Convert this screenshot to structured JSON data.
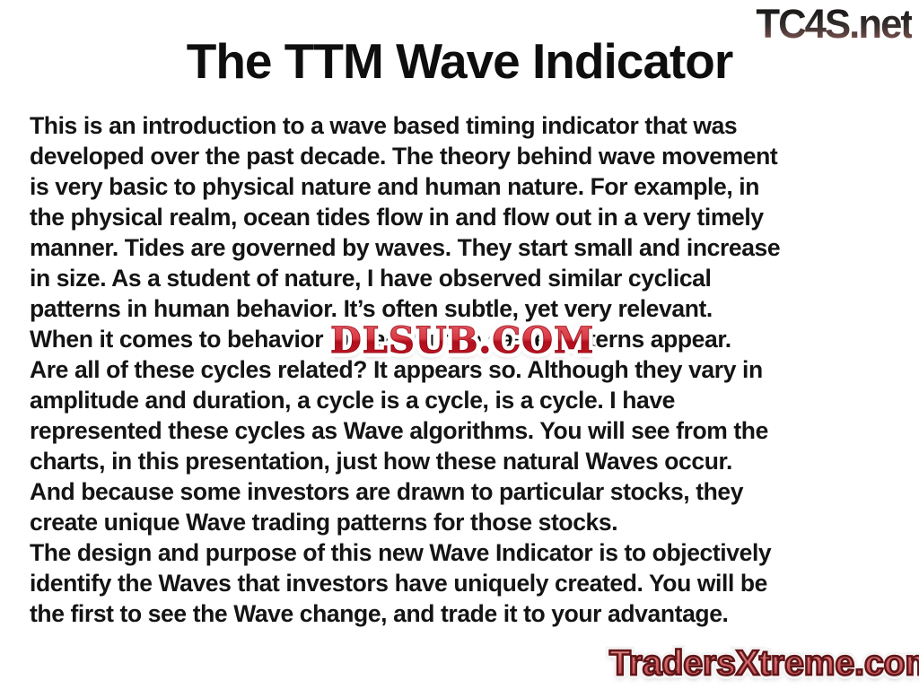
{
  "slide": {
    "title": "The TTM Wave Indicator",
    "body": "This is an introduction to a wave based timing indicator that was\ndeveloped over the past decade. The theory behind wave movement\nis very basic to physical nature and human nature. For example, in\nthe physical realm, ocean tides flow in and flow out in a very timely\nmanner. Tides are governed by waves. They start small and increase\nin size. As a student of nature, I have observed similar cyclical\npatterns in human behavior. It’s often subtle, yet very relevant.\nWhen it comes to behavior in trading, the same patterns appear.\nAre all of these cycles related? It appears so. Although they vary in\namplitude and duration, a cycle is a cycle, is a cycle. I have\nrepresented these cycles as Wave algorithms. You will see from the\ncharts, in this presentation, just how these natural Waves occur.\nAnd because some investors are drawn to particular stocks, they\ncreate unique Wave trading patterns for those stocks.\nThe design and purpose of this new Wave Indicator is to objectively\nidentify the Waves that investors have uniquely created. You will be\nthe first to see the Wave change, and trade it to your advantage."
  },
  "watermarks": {
    "top_right": "TC4S.net",
    "center": "DLSUB.COM",
    "bottom_right": "TradersXtreme.com"
  },
  "colors": {
    "background": "#ffffff",
    "body_text": "#141414",
    "title_text": "#0e0e0e",
    "dlsub_red": "#c51a27",
    "dlsub_outline": "#ffffff",
    "tc4s_gradient_top": "#141414",
    "tc4s_gradient_bottom": "#8f6462",
    "traders_fill": "#d4676b",
    "traders_outline": "#5e1517",
    "traders_outer_stroke": "#f5f4f4"
  }
}
